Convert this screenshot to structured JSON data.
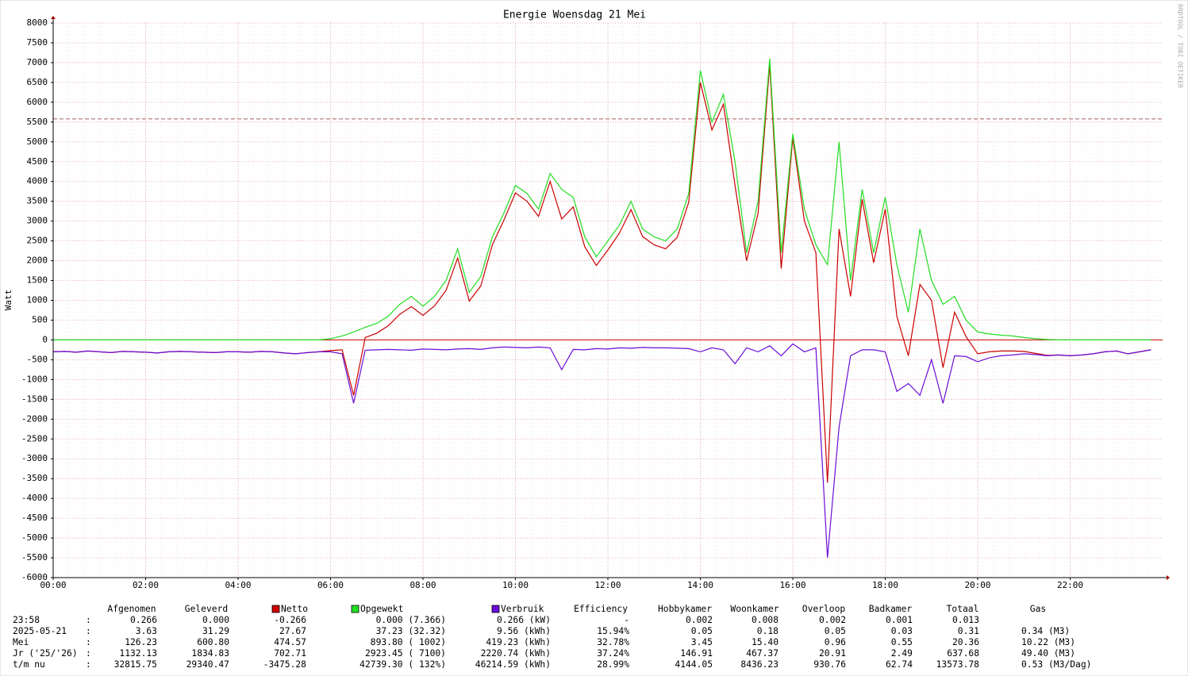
{
  "chart_data": {
    "type": "line",
    "title": "Energie Woensdag  21 Mei",
    "y_label": "Watt",
    "watermark": "RRDTOOL / TOBI OETIKER",
    "xlim": [
      0,
      24
    ],
    "ylim": [
      -6000,
      8000
    ],
    "xticks": [
      {
        "value": 0,
        "label": "00:00"
      },
      {
        "value": 2,
        "label": "02:00"
      },
      {
        "value": 4,
        "label": "04:00"
      },
      {
        "value": 6,
        "label": "06:00"
      },
      {
        "value": 8,
        "label": "08:00"
      },
      {
        "value": 10,
        "label": "10:00"
      },
      {
        "value": 12,
        "label": "12:00"
      },
      {
        "value": 14,
        "label": "14:00"
      },
      {
        "value": 16,
        "label": "16:00"
      },
      {
        "value": 18,
        "label": "18:00"
      },
      {
        "value": 20,
        "label": "20:00"
      },
      {
        "value": 22,
        "label": "22:00"
      }
    ],
    "yticks": [
      -6000,
      -5500,
      -5000,
      -4500,
      -4000,
      -3500,
      -3000,
      -2500,
      -2000,
      -1500,
      -1000,
      -500,
      0,
      500,
      1000,
      1500,
      2000,
      2500,
      3000,
      3500,
      4000,
      4500,
      5000,
      5500,
      6000,
      6500,
      7000,
      7500,
      8000
    ],
    "grid": true,
    "threshold": {
      "value": 5580,
      "color": "#a06060"
    },
    "x": [
      0,
      0.25,
      0.5,
      0.75,
      1,
      1.25,
      1.5,
      1.75,
      2,
      2.25,
      2.5,
      2.75,
      3,
      3.25,
      3.5,
      3.75,
      4,
      4.25,
      4.5,
      4.75,
      5,
      5.25,
      5.5,
      5.75,
      6,
      6.25,
      6.5,
      6.75,
      7,
      7.25,
      7.5,
      7.75,
      8,
      8.25,
      8.5,
      8.75,
      9,
      9.25,
      9.5,
      9.75,
      10,
      10.25,
      10.5,
      10.75,
      11,
      11.25,
      11.5,
      11.75,
      12,
      12.25,
      12.5,
      12.75,
      13,
      13.25,
      13.5,
      13.75,
      14,
      14.25,
      14.5,
      14.75,
      15,
      15.25,
      15.5,
      15.75,
      16,
      16.25,
      16.5,
      16.75,
      17,
      17.25,
      17.5,
      17.75,
      18,
      18.25,
      18.5,
      18.75,
      19,
      19.25,
      19.5,
      19.75,
      20,
      20.25,
      20.5,
      20.75,
      21,
      21.25,
      21.5,
      21.75,
      22,
      22.25,
      22.5,
      22.75,
      23,
      23.25,
      23.5,
      23.75
    ],
    "series": [
      {
        "name": "Netto",
        "color": "#cc0000",
        "values": [
          -300,
          -290,
          -310,
          -280,
          -300,
          -320,
          -290,
          -300,
          -310,
          -330,
          -300,
          -290,
          -300,
          -310,
          -320,
          -300,
          -300,
          -310,
          -290,
          -300,
          -330,
          -350,
          -320,
          -300,
          -270,
          -250,
          -1400,
          60,
          170,
          360,
          650,
          840,
          620,
          860,
          1250,
          2070,
          980,
          1360,
          2400,
          3020,
          3710,
          3500,
          3120,
          4000,
          3050,
          3360,
          2350,
          1880,
          2270,
          2700,
          3290,
          2610,
          2400,
          2300,
          2590,
          3480,
          6500,
          5300,
          5950,
          3900,
          2000,
          3200,
          6950,
          1800,
          5100,
          3000,
          2200,
          -3600,
          2800,
          1100,
          3550,
          1950,
          3300,
          600,
          -400,
          1400,
          1000,
          -700,
          700,
          80,
          -350,
          -300,
          -280,
          -280,
          -290,
          -340,
          -390,
          -380,
          -400,
          -380,
          -350,
          -300,
          -280,
          -350,
          -300,
          -250
        ]
      },
      {
        "name": "Opgewekt",
        "color": "#22dd22",
        "values": [
          0,
          0,
          0,
          0,
          0,
          0,
          0,
          0,
          0,
          0,
          0,
          0,
          0,
          0,
          0,
          0,
          0,
          0,
          0,
          0,
          0,
          0,
          0,
          0,
          30,
          100,
          200,
          320,
          420,
          600,
          900,
          1100,
          850,
          1100,
          1500,
          2300,
          1200,
          1600,
          2600,
          3200,
          3900,
          3700,
          3300,
          4200,
          3800,
          3600,
          2600,
          2100,
          2500,
          2900,
          3500,
          2800,
          2600,
          2500,
          2800,
          3700,
          6800,
          5500,
          6200,
          4500,
          2200,
          3500,
          7100,
          2200,
          5200,
          3300,
          2400,
          1900,
          5000,
          1500,
          3800,
          2200,
          3600,
          1900,
          700,
          2800,
          1500,
          900,
          1100,
          500,
          200,
          150,
          120,
          100,
          60,
          30,
          10,
          0,
          0,
          0,
          0,
          0,
          0,
          0,
          0,
          0
        ]
      },
      {
        "name": "Verbruik",
        "color": "#6a0dd8",
        "values": [
          -300,
          -290,
          -310,
          -280,
          -300,
          -320,
          -290,
          -300,
          -310,
          -330,
          -300,
          -290,
          -300,
          -310,
          -320,
          -300,
          -300,
          -310,
          -290,
          -300,
          -330,
          -350,
          -320,
          -300,
          -300,
          -350,
          -1600,
          -260,
          -250,
          -240,
          -250,
          -260,
          -230,
          -240,
          -250,
          -230,
          -220,
          -240,
          -200,
          -180,
          -190,
          -200,
          -180,
          -200,
          -750,
          -240,
          -250,
          -220,
          -230,
          -200,
          -210,
          -190,
          -200,
          -200,
          -210,
          -220,
          -300,
          -200,
          -250,
          -600,
          -200,
          -300,
          -150,
          -400,
          -100,
          -300,
          -200,
          -5500,
          -2200,
          -400,
          -250,
          -250,
          -300,
          -1300,
          -1100,
          -1400,
          -500,
          -1600,
          -400,
          -420,
          -550,
          -450,
          -400,
          -380,
          -350,
          -370,
          -400,
          -380,
          -400,
          -380,
          -350,
          -300,
          -280,
          -350,
          -300,
          -250
        ]
      }
    ]
  },
  "table": {
    "headers_left": [
      "Afgenomen",
      "Geleverd"
    ],
    "headers_right": [
      "Efficiency",
      "Hobbykamer",
      "Woonkamer",
      "Overloop",
      "Badkamer",
      "Totaal",
      "Gas"
    ],
    "separator": ":",
    "rows": [
      {
        "label": "23:58",
        "cells": [
          "0.266",
          "0.000",
          "-0.266",
          "0.000 (7.366)",
          "0.266 (kW)",
          "-",
          "0.002",
          "0.008",
          "0.002",
          "0.001",
          "0.013"
        ]
      },
      {
        "label": "2025-05-21",
        "cells": [
          "3.63",
          "31.29",
          "27.67",
          "37.23 (32.32)",
          "9.56 (kWh)",
          "15.94%",
          "0.05",
          "0.18",
          "0.05",
          "0.03",
          "0.31",
          "0.34 (M3)"
        ]
      },
      {
        "label": "Mei",
        "cells": [
          "126.23",
          "600.80",
          "474.57",
          "893.80 ( 1002)",
          "419.23 (kWh)",
          "32.78%",
          "3.45",
          "15.40",
          "0.96",
          "0.55",
          "20.36",
          "10.22 (M3)"
        ]
      },
      {
        "label": "Jr ('25/'26)",
        "cells": [
          "1132.13",
          "1834.83",
          "702.71",
          "2923.45 ( 7100)",
          "2220.74 (kWh)",
          "37.24%",
          "146.91",
          "467.37",
          "20.91",
          "2.49",
          "637.68",
          "49.40 (M3)"
        ]
      },
      {
        "label": "t/m nu",
        "cells": [
          "32815.75",
          "29340.47",
          "-3475.28",
          "42739.30 ( 132%)",
          "46214.59 (kWh)",
          "28.99%",
          "4144.05",
          "8436.23",
          "930.76",
          "62.74",
          "13573.78",
          "0.53 (M3/Dag)"
        ]
      }
    ]
  }
}
